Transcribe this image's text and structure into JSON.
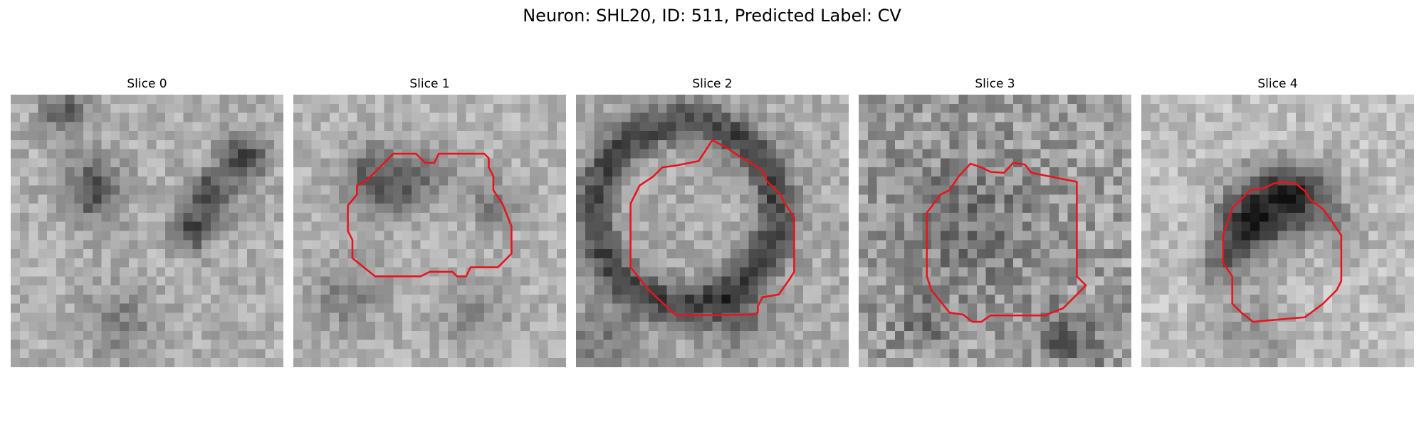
{
  "figure": {
    "title": "Neuron: SHL20, ID: 511, Predicted Label: CV"
  },
  "panels": [
    {
      "title": "Slice 0",
      "has_contour": false
    },
    {
      "title": "Slice 1",
      "has_contour": true
    },
    {
      "title": "Slice 2",
      "has_contour": true
    },
    {
      "title": "Slice 3",
      "has_contour": true
    },
    {
      "title": "Slice 4",
      "has_contour": true
    }
  ],
  "colors": {
    "contour": "#e8141c",
    "image_colormap": "grayscale"
  }
}
